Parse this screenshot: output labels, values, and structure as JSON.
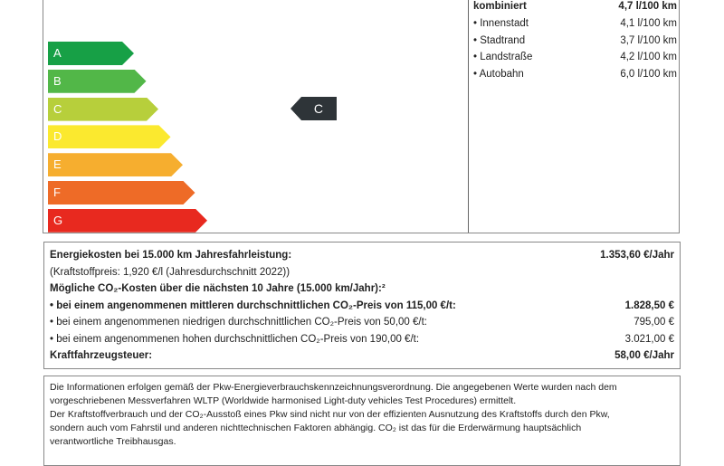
{
  "efficiency": {
    "classes": [
      {
        "label": "A",
        "color": "#17a046"
      },
      {
        "label": "B",
        "color": "#52b748"
      },
      {
        "label": "C",
        "color": "#b7cf3b"
      },
      {
        "label": "D",
        "color": "#fbe92f"
      },
      {
        "label": "E",
        "color": "#f6ae2f"
      },
      {
        "label": "F",
        "color": "#ee6b27"
      },
      {
        "label": "G",
        "color": "#e8291f"
      }
    ],
    "current_class": "C",
    "marker_color": "#2e3438"
  },
  "consumption": {
    "combined": {
      "label": "kombiniert",
      "value": "4,7 l/100 km"
    },
    "items": [
      {
        "label": "• Innenstadt",
        "value": "4,1 l/100 km"
      },
      {
        "label": "• Stadtrand",
        "value": "3,7 l/100 km"
      },
      {
        "label": "• Landstraße",
        "value": "4,2 l/100 km"
      },
      {
        "label": "• Autobahn",
        "value": "6,0 l/100 km"
      }
    ]
  },
  "costs": {
    "rows": [
      {
        "label": "Energiekosten bei 15.000 km Jahresfahrleistung:",
        "value": "1.353,60 €/Jahr",
        "bold": true
      },
      {
        "label": "(Kraftstoffpreis: 1,920 €/l (Jahresdurchschnitt 2022))",
        "value": "",
        "bold": false
      },
      {
        "label": "Mögliche CO₂-Kosten über die nächsten 10 Jahre (15.000 km/Jahr):²",
        "value": "",
        "bold": true
      },
      {
        "label": "• bei einem angenommenen mittleren durchschnittlichen CO₂-Preis von 115,00 €/t:",
        "value": "1.828,50 €",
        "bold": true
      },
      {
        "label": "• bei einem angenommenen niedrigen durchschnittlichen CO₂-Preis von 50,00 €/t:",
        "value": "795,00 €",
        "bold": false
      },
      {
        "label": "• bei einem angenommenen hohen durchschnittlichen CO₂-Preis von 190,00 €/t:",
        "value": "3.021,00 €",
        "bold": false
      },
      {
        "label": "Kraftfahrzeugsteuer:",
        "value": "58,00 €/Jahr",
        "bold": true
      }
    ]
  },
  "info": {
    "lines": [
      "Die Informationen erfolgen gemäß der Pkw-Energieverbrauchskennzeichnungsverordnung. Die angegebenen Werte wurden nach dem",
      "vorgeschriebenen Messverfahren WLTP (Worldwide harmonised Light-duty vehicles Test Procedures) ermittelt.",
      "Der Kraftstoffverbrauch und der CO₂-Ausstoß eines Pkw sind nicht nur von der effizienten Ausnutzung des Kraftstoffs durch den Pkw,",
      "sondern auch vom Fahrstil und anderen nichttechnischen Faktoren abhängig. CO₂ ist das für die Erderwärmung hauptsächlich",
      "verantwortliche Treibhausgas."
    ]
  }
}
